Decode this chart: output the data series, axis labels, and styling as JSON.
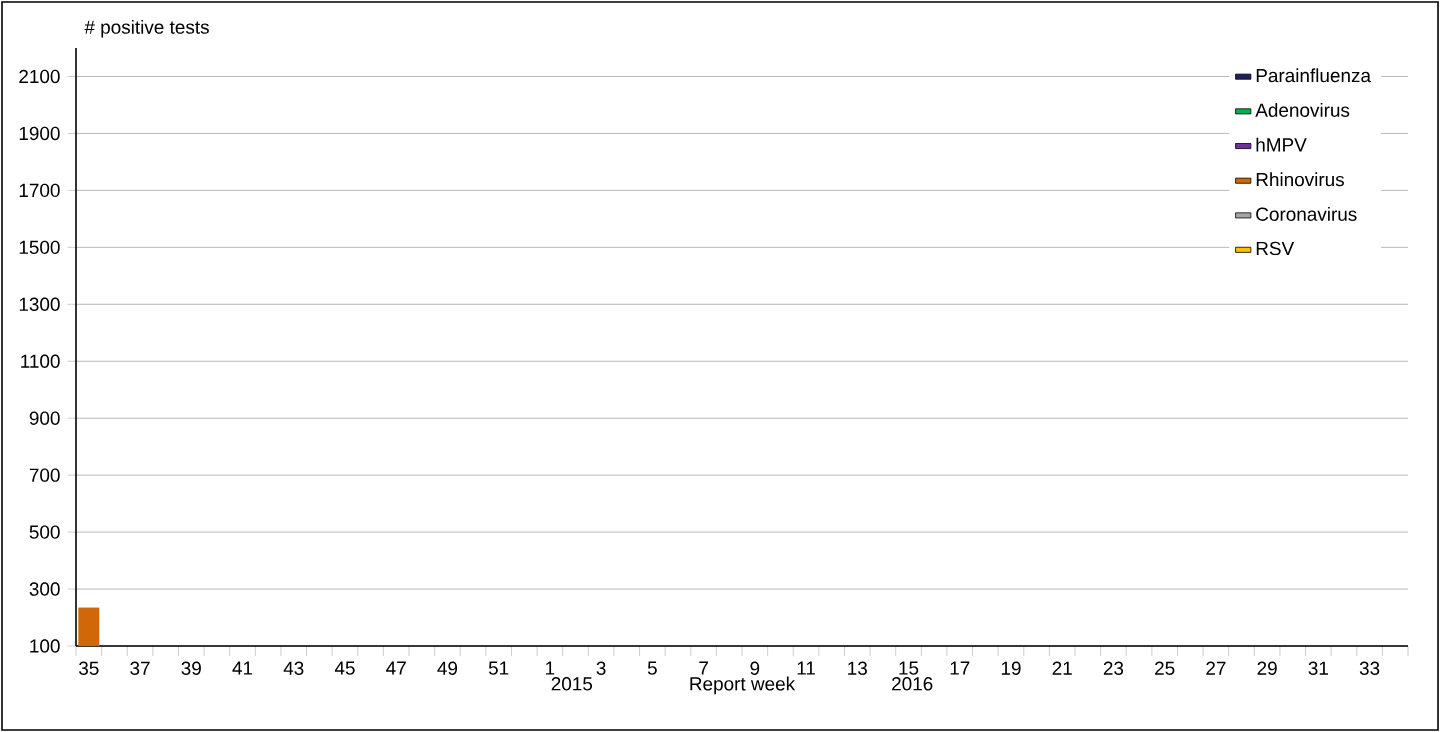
{
  "chart_data": {
    "type": "bar",
    "ylabel": "# positive tests",
    "xlabel": "Report week",
    "annotations": [
      "2015",
      "2016"
    ],
    "categories": [
      "35",
      null,
      "37",
      null,
      "39",
      null,
      "41",
      null,
      "43",
      null,
      "45",
      null,
      "47",
      null,
      "49",
      null,
      "51",
      null,
      "1",
      null,
      "3",
      null,
      "5",
      null,
      "7",
      null,
      "9",
      null,
      "11",
      null,
      "13",
      null,
      "15",
      null,
      "17",
      null,
      "19",
      null,
      "21",
      null,
      "23",
      null,
      "25",
      null,
      "27",
      null,
      "29",
      null,
      "31",
      null,
      "33",
      null
    ],
    "series": [
      {
        "name": "Parainfluenza",
        "color": "#1f2060",
        "values": [
          null,
          null,
          null,
          null,
          null,
          null,
          null,
          null,
          null,
          null,
          null,
          null,
          null,
          null,
          null,
          null,
          null,
          null,
          null,
          null,
          null,
          null,
          null,
          null,
          null,
          null,
          null,
          null,
          null,
          null,
          null,
          null,
          null,
          null,
          null,
          null,
          null,
          null,
          null,
          null,
          null,
          null,
          null,
          null,
          null,
          null,
          null,
          null,
          null,
          null,
          null,
          null
        ]
      },
      {
        "name": "Adenovirus",
        "color": "#00b050",
        "values": [
          null,
          null,
          null,
          null,
          null,
          null,
          null,
          null,
          null,
          null,
          null,
          null,
          null,
          null,
          null,
          null,
          null,
          null,
          null,
          null,
          null,
          null,
          null,
          null,
          null,
          null,
          null,
          null,
          null,
          null,
          null,
          null,
          null,
          null,
          null,
          null,
          null,
          null,
          null,
          null,
          null,
          null,
          null,
          null,
          null,
          null,
          null,
          null,
          null,
          null,
          null,
          null
        ]
      },
      {
        "name": "hMPV",
        "color": "#7030a0",
        "values": [
          null,
          null,
          null,
          null,
          null,
          null,
          null,
          null,
          null,
          null,
          null,
          null,
          null,
          null,
          null,
          null,
          null,
          null,
          null,
          null,
          null,
          null,
          null,
          null,
          null,
          null,
          null,
          null,
          null,
          null,
          null,
          null,
          null,
          null,
          null,
          null,
          null,
          null,
          null,
          null,
          null,
          null,
          null,
          null,
          null,
          null,
          null,
          null,
          null,
          null,
          null,
          null
        ]
      },
      {
        "name": "Rhinovirus",
        "color": "#d0680a",
        "values": [
          235,
          null,
          null,
          null,
          null,
          null,
          null,
          null,
          null,
          null,
          null,
          null,
          null,
          null,
          null,
          null,
          null,
          null,
          null,
          null,
          null,
          null,
          null,
          null,
          null,
          null,
          null,
          null,
          null,
          null,
          null,
          null,
          null,
          null,
          null,
          null,
          null,
          null,
          null,
          null,
          null,
          null,
          null,
          null,
          null,
          null,
          null,
          null,
          null,
          null,
          null,
          null
        ]
      },
      {
        "name": "Coronavirus",
        "color": "#a6a6a6",
        "values": [
          null,
          null,
          null,
          null,
          null,
          null,
          null,
          null,
          null,
          null,
          null,
          null,
          null,
          null,
          null,
          null,
          null,
          null,
          null,
          null,
          null,
          null,
          null,
          null,
          null,
          null,
          null,
          null,
          null,
          null,
          null,
          null,
          null,
          null,
          null,
          null,
          null,
          null,
          null,
          null,
          null,
          null,
          null,
          null,
          null,
          null,
          null,
          null,
          null,
          null,
          null,
          null
        ]
      },
      {
        "name": "RSV",
        "color": "#ffc000",
        "values": [
          null,
          null,
          null,
          null,
          null,
          null,
          null,
          null,
          null,
          null,
          null,
          null,
          null,
          null,
          null,
          null,
          null,
          null,
          null,
          null,
          null,
          null,
          null,
          null,
          null,
          null,
          null,
          null,
          null,
          null,
          null,
          null,
          null,
          null,
          null,
          null,
          null,
          null,
          null,
          null,
          null,
          null,
          null,
          null,
          null,
          null,
          null,
          null,
          null,
          null,
          null,
          null
        ]
      }
    ],
    "ylim": [
      100,
      2200
    ],
    "yticks": [
      100,
      300,
      500,
      700,
      900,
      1100,
      1300,
      1500,
      1700,
      1900,
      2100
    ],
    "grid": "y",
    "legend": "top right"
  }
}
